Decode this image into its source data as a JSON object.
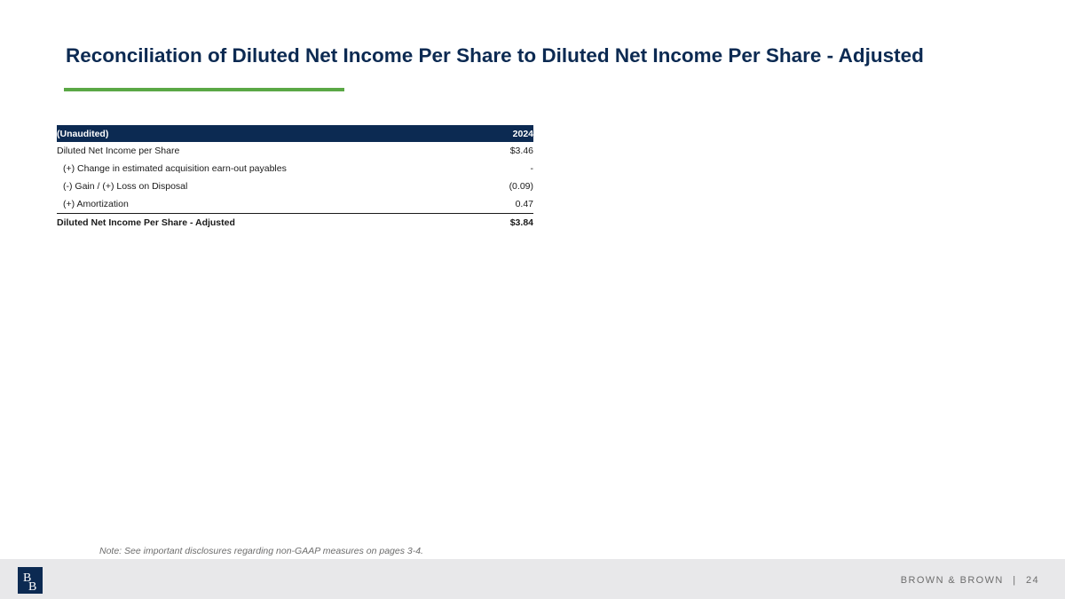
{
  "slide": {
    "title": "Reconciliation of Diluted Net Income Per Share to Diluted Net Income Per Share - Adjusted"
  },
  "table": {
    "header": {
      "label": "(Unaudited)",
      "year": "2024"
    },
    "rows": [
      {
        "label": "Diluted Net Income per Share",
        "value": "$3.46"
      },
      {
        "label": "(+) Change in estimated acquisition earn-out payables",
        "value": "-"
      },
      {
        "label": "(-) Gain / (+)  Loss on Disposal",
        "value": "(0.09)"
      },
      {
        "label": "(+) Amortization",
        "value": "0.47"
      }
    ],
    "total": {
      "label": "Diluted Net Income Per Share - Adjusted",
      "value": "$3.84"
    }
  },
  "note": "Note: See important disclosures regarding non-GAAP measures on pages 3-4.",
  "footer": {
    "logo_letters": "BB",
    "company": "BROWN & BROWN",
    "separator": "|",
    "page_number": "24"
  },
  "colors": {
    "navy": "#0c2a52",
    "accent_green": "#5aa845",
    "footer_bg": "#e8e8ea",
    "muted_text": "#6d6d6d"
  }
}
